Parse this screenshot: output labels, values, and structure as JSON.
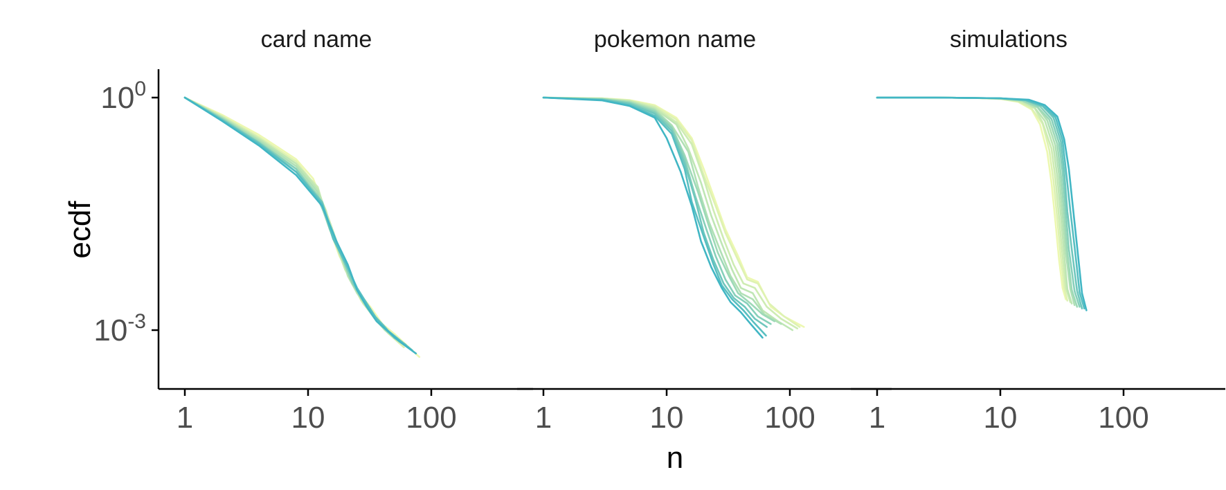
{
  "chart_data": {
    "type": "line",
    "xlabel": "n",
    "ylabel": "ecdf",
    "x_scale": "log10",
    "y_scale": "log10",
    "xlim": [
      0.6,
      160
    ],
    "ylim": [
      0.0002,
      2
    ],
    "x_ticks": [
      1,
      10,
      100
    ],
    "x_tick_labels": [
      "1",
      "10",
      "100"
    ],
    "y_ticks": [
      1,
      0.001
    ],
    "y_tick_labels": [
      {
        "base": "10",
        "exp": "0"
      },
      {
        "base": "10",
        "exp": "-3"
      }
    ],
    "grid": false,
    "legend": "none",
    "colors": {
      "low": "#edf8b1",
      "mid": "#a8ddb5",
      "high": "#41b6c4",
      "axis": "#000000",
      "tick_text": "#4d4d4d"
    },
    "panels": [
      {
        "title": "card name",
        "series": [
          {
            "x": [
              1,
              2,
              4,
              8,
              11,
              13,
              15,
              18,
              22,
              26,
              32,
              40,
              50,
              80
            ],
            "y": [
              1,
              0.6,
              0.33,
              0.16,
              0.09,
              0.045,
              0.02,
              0.009,
              0.005,
              0.003,
              0.002,
              0.0012,
              0.0009,
              0.00045
            ]
          },
          {
            "x": [
              1,
              2,
              4,
              8,
              11,
              14,
              16,
              19,
              23,
              27,
              32,
              38,
              45,
              60
            ],
            "y": [
              1,
              0.58,
              0.31,
              0.15,
              0.08,
              0.035,
              0.016,
              0.008,
              0.004,
              0.0024,
              0.0017,
              0.0012,
              0.0009,
              0.0006
            ]
          },
          {
            "x": [
              1,
              2,
              4,
              8,
              12,
              14,
              17,
              20,
              24,
              28,
              33,
              40,
              50
            ],
            "y": [
              1,
              0.57,
              0.3,
              0.14,
              0.07,
              0.03,
              0.012,
              0.006,
              0.0035,
              0.0022,
              0.0016,
              0.0011,
              0.0008
            ]
          },
          {
            "x": [
              1,
              2,
              4,
              8,
              12,
              15,
              18,
              21,
              25,
              30,
              35,
              42,
              55
            ],
            "y": [
              1,
              0.56,
              0.29,
              0.14,
              0.065,
              0.025,
              0.011,
              0.005,
              0.003,
              0.002,
              0.0014,
              0.001,
              0.0007
            ]
          },
          {
            "x": [
              1,
              2,
              4,
              8,
              12,
              15,
              18,
              22,
              26,
              31,
              36,
              44,
              58
            ],
            "y": [
              1,
              0.55,
              0.28,
              0.13,
              0.06,
              0.022,
              0.01,
              0.0045,
              0.0028,
              0.0018,
              0.0013,
              0.00095,
              0.0007
            ]
          },
          {
            "x": [
              1,
              2,
              4,
              8,
              12,
              15,
              19,
              23,
              27,
              32,
              38,
              46,
              60
            ],
            "y": [
              1,
              0.54,
              0.27,
              0.12,
              0.055,
              0.02,
              0.009,
              0.0042,
              0.0026,
              0.0017,
              0.0012,
              0.0009,
              0.00065
            ]
          },
          {
            "x": [
              1,
              2,
              4,
              8,
              12,
              16,
              19,
              23,
              28,
              33,
              40,
              48,
              62
            ],
            "y": [
              1,
              0.53,
              0.26,
              0.12,
              0.05,
              0.018,
              0.0085,
              0.004,
              0.0024,
              0.0016,
              0.0012,
              0.00085,
              0.00065
            ]
          },
          {
            "x": [
              1,
              2,
              4,
              8,
              13,
              16,
              20,
              24,
              29,
              35,
              42,
              50,
              65
            ],
            "y": [
              1,
              0.52,
              0.26,
              0.11,
              0.045,
              0.016,
              0.008,
              0.0038,
              0.0023,
              0.0015,
              0.0011,
              0.0008,
              0.0006
            ]
          },
          {
            "x": [
              1,
              2,
              4,
              8,
              13,
              16,
              20,
              25,
              30,
              36,
              44,
              55,
              70
            ],
            "y": [
              1,
              0.51,
              0.25,
              0.11,
              0.042,
              0.015,
              0.0075,
              0.0035,
              0.0022,
              0.0014,
              0.001,
              0.00075,
              0.00055
            ]
          },
          {
            "x": [
              1,
              2,
              4,
              8,
              13,
              17,
              21,
              25,
              30,
              36,
              45,
              56,
              75
            ],
            "y": [
              1,
              0.5,
              0.24,
              0.1,
              0.04,
              0.014,
              0.007,
              0.0033,
              0.002,
              0.0013,
              0.00095,
              0.0007,
              0.0005
            ]
          }
        ]
      },
      {
        "title": "pokemon name",
        "series": [
          {
            "x": [
              1,
              3,
              5,
              8,
              12,
              16,
              20,
              25,
              30,
              38,
              45,
              55,
              70,
              90,
              130
            ],
            "y": [
              1,
              0.98,
              0.93,
              0.8,
              0.55,
              0.3,
              0.12,
              0.045,
              0.02,
              0.009,
              0.0048,
              0.0042,
              0.002,
              0.0015,
              0.0011
            ]
          },
          {
            "x": [
              1,
              3,
              5,
              8,
              12,
              16,
              20,
              25,
              30,
              38,
              45,
              55,
              68,
              90,
              120
            ],
            "y": [
              1,
              0.98,
              0.92,
              0.78,
              0.52,
              0.28,
              0.1,
              0.04,
              0.018,
              0.008,
              0.0045,
              0.004,
              0.0022,
              0.0015,
              0.0011
            ]
          },
          {
            "x": [
              1,
              3,
              5,
              8,
              12,
              16,
              20,
              24,
              29,
              35,
              42,
              52,
              65,
              85,
              115
            ],
            "y": [
              1,
              0.97,
              0.91,
              0.75,
              0.48,
              0.25,
              0.09,
              0.035,
              0.015,
              0.007,
              0.004,
              0.0035,
              0.002,
              0.0014,
              0.00105
            ]
          },
          {
            "x": [
              1,
              3,
              5,
              8,
              12,
              15,
              19,
              23,
              28,
              34,
              40,
              50,
              60,
              80,
              105
            ],
            "y": [
              1,
              0.97,
              0.9,
              0.72,
              0.45,
              0.22,
              0.08,
              0.03,
              0.013,
              0.006,
              0.0035,
              0.003,
              0.0018,
              0.0013,
              0.001
            ]
          },
          {
            "x": [
              1,
              3,
              5,
              8,
              11,
              15,
              18,
              22,
              27,
              33,
              40,
              50,
              62,
              85
            ],
            "y": [
              1,
              0.96,
              0.88,
              0.7,
              0.44,
              0.2,
              0.07,
              0.025,
              0.011,
              0.005,
              0.003,
              0.0025,
              0.0016,
              0.0012
            ]
          },
          {
            "x": [
              1,
              3,
              5,
              8,
              11,
              14,
              18,
              22,
              26,
              32,
              38,
              48,
              60,
              75
            ],
            "y": [
              1,
              0.96,
              0.87,
              0.68,
              0.42,
              0.18,
              0.06,
              0.022,
              0.01,
              0.005,
              0.003,
              0.0022,
              0.0016,
              0.0013
            ]
          },
          {
            "x": [
              1,
              3,
              5,
              8,
              11,
              14,
              17,
              21,
              25,
              30,
              36,
              45,
              55,
              70
            ],
            "y": [
              1,
              0.95,
              0.85,
              0.65,
              0.4,
              0.16,
              0.055,
              0.02,
              0.009,
              0.0045,
              0.0028,
              0.0022,
              0.0015,
              0.0012
            ]
          },
          {
            "x": [
              1,
              3,
              5,
              8,
              11,
              14,
              17,
              20,
              24,
              29,
              35,
              43,
              52,
              65
            ],
            "y": [
              1,
              0.94,
              0.83,
              0.62,
              0.37,
              0.14,
              0.05,
              0.018,
              0.008,
              0.004,
              0.0026,
              0.002,
              0.0014,
              0.0011
            ]
          },
          {
            "x": [
              1,
              3,
              5,
              8,
              11,
              14,
              16,
              20,
              24,
              28,
              34,
              42,
              50,
              64
            ],
            "y": [
              1,
              0.93,
              0.8,
              0.58,
              0.34,
              0.12,
              0.045,
              0.016,
              0.007,
              0.0038,
              0.0025,
              0.0018,
              0.0013,
              0.00085
            ]
          },
          {
            "x": [
              1,
              3,
              5,
              8,
              10,
              13,
              16,
              19,
              23,
              28,
              33,
              40,
              48,
              60
            ],
            "y": [
              1,
              0.92,
              0.78,
              0.55,
              0.3,
              0.11,
              0.04,
              0.014,
              0.0065,
              0.0035,
              0.0023,
              0.0017,
              0.0012,
              0.0008
            ]
          }
        ]
      },
      {
        "title": "simulations",
        "series": [
          {
            "x": [
              1,
              3,
              6,
              10,
              14,
              18,
              21,
              24,
              26,
              28,
              30,
              32,
              34
            ],
            "y": [
              1,
              1,
              0.99,
              0.96,
              0.88,
              0.7,
              0.45,
              0.2,
              0.08,
              0.025,
              0.008,
              0.0035,
              0.0025
            ]
          },
          {
            "x": [
              1,
              3,
              6,
              10,
              14,
              18,
              22,
              25,
              27,
              29,
              31,
              33,
              35
            ],
            "y": [
              1,
              1,
              0.99,
              0.96,
              0.89,
              0.72,
              0.46,
              0.21,
              0.085,
              0.027,
              0.0085,
              0.0035,
              0.0024
            ]
          },
          {
            "x": [
              1,
              3,
              6,
              10,
              14,
              19,
              22,
              26,
              28,
              30,
              32,
              34,
              37
            ],
            "y": [
              1,
              1,
              0.99,
              0.97,
              0.9,
              0.73,
              0.48,
              0.22,
              0.09,
              0.028,
              0.009,
              0.0035,
              0.0023
            ]
          },
          {
            "x": [
              1,
              3,
              6,
              10,
              15,
              19,
              23,
              27,
              29,
              31,
              33,
              35,
              38
            ],
            "y": [
              1,
              1,
              0.99,
              0.97,
              0.91,
              0.74,
              0.5,
              0.23,
              0.095,
              0.03,
              0.0095,
              0.0034,
              0.0022
            ]
          },
          {
            "x": [
              1,
              3,
              6,
              10,
              15,
              20,
              24,
              28,
              30,
              32,
              34,
              37,
              40
            ],
            "y": [
              1,
              1,
              0.99,
              0.97,
              0.91,
              0.75,
              0.51,
              0.24,
              0.1,
              0.031,
              0.01,
              0.0034,
              0.0021
            ]
          },
          {
            "x": [
              1,
              3,
              6,
              10,
              15,
              20,
              25,
              29,
              31,
              33,
              35,
              38,
              42
            ],
            "y": [
              1,
              1,
              0.99,
              0.97,
              0.92,
              0.76,
              0.52,
              0.25,
              0.1,
              0.032,
              0.01,
              0.0033,
              0.002
            ]
          },
          {
            "x": [
              1,
              3,
              6,
              10,
              16,
              21,
              26,
              30,
              32,
              34,
              36,
              40,
              44
            ],
            "y": [
              1,
              1,
              0.99,
              0.98,
              0.92,
              0.77,
              0.53,
              0.26,
              0.11,
              0.033,
              0.011,
              0.0032,
              0.002
            ]
          },
          {
            "x": [
              1,
              3,
              6,
              10,
              16,
              22,
              27,
              31,
              33,
              35,
              38,
              42,
              46
            ],
            "y": [
              1,
              1,
              0.99,
              0.98,
              0.93,
              0.78,
              0.55,
              0.27,
              0.11,
              0.034,
              0.011,
              0.0032,
              0.0019
            ]
          },
          {
            "x": [
              1,
              3,
              6,
              10,
              16,
              22,
              28,
              32,
              34,
              37,
              40,
              44,
              48
            ],
            "y": [
              1,
              1,
              0.99,
              0.98,
              0.93,
              0.79,
              0.56,
              0.28,
              0.12,
              0.035,
              0.012,
              0.0031,
              0.0019
            ]
          },
          {
            "x": [
              1,
              3,
              6,
              10,
              17,
              23,
              29,
              33,
              36,
              39,
              42,
              46,
              50
            ],
            "y": [
              1,
              1,
              0.99,
              0.98,
              0.94,
              0.8,
              0.57,
              0.29,
              0.12,
              0.036,
              0.012,
              0.003,
              0.0018
            ]
          }
        ]
      }
    ]
  }
}
